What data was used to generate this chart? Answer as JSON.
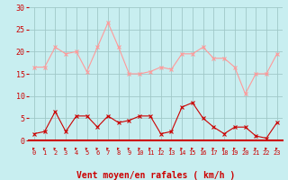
{
  "x": [
    0,
    1,
    2,
    3,
    4,
    5,
    6,
    7,
    8,
    9,
    10,
    11,
    12,
    13,
    14,
    15,
    16,
    17,
    18,
    19,
    20,
    21,
    22,
    23
  ],
  "rafales": [
    16.5,
    16.5,
    21,
    19.5,
    20,
    15.5,
    21,
    26.5,
    21,
    15,
    15,
    15.5,
    16.5,
    16,
    19.5,
    19.5,
    21,
    18.5,
    18.5,
    16.5,
    10.5,
    15,
    15,
    19.5
  ],
  "moyen": [
    1.5,
    2,
    6.5,
    2,
    5.5,
    5.5,
    3,
    5.5,
    4,
    4.5,
    5.5,
    5.5,
    1.5,
    2,
    7.5,
    8.5,
    5,
    3,
    1.5,
    3,
    3,
    1,
    0.5,
    4
  ],
  "bg_color": "#c8eef0",
  "grid_color": "#a0c8c8",
  "line_rafales_color": "#ff9999",
  "line_moyen_color": "#cc0000",
  "xlabel": "Vent moyen/en rafales ( km/h )",
  "ylim": [
    0,
    30
  ],
  "yticks": [
    0,
    5,
    10,
    15,
    20,
    25,
    30
  ],
  "axis_fontsize": 7,
  "tick_fontsize": 6
}
